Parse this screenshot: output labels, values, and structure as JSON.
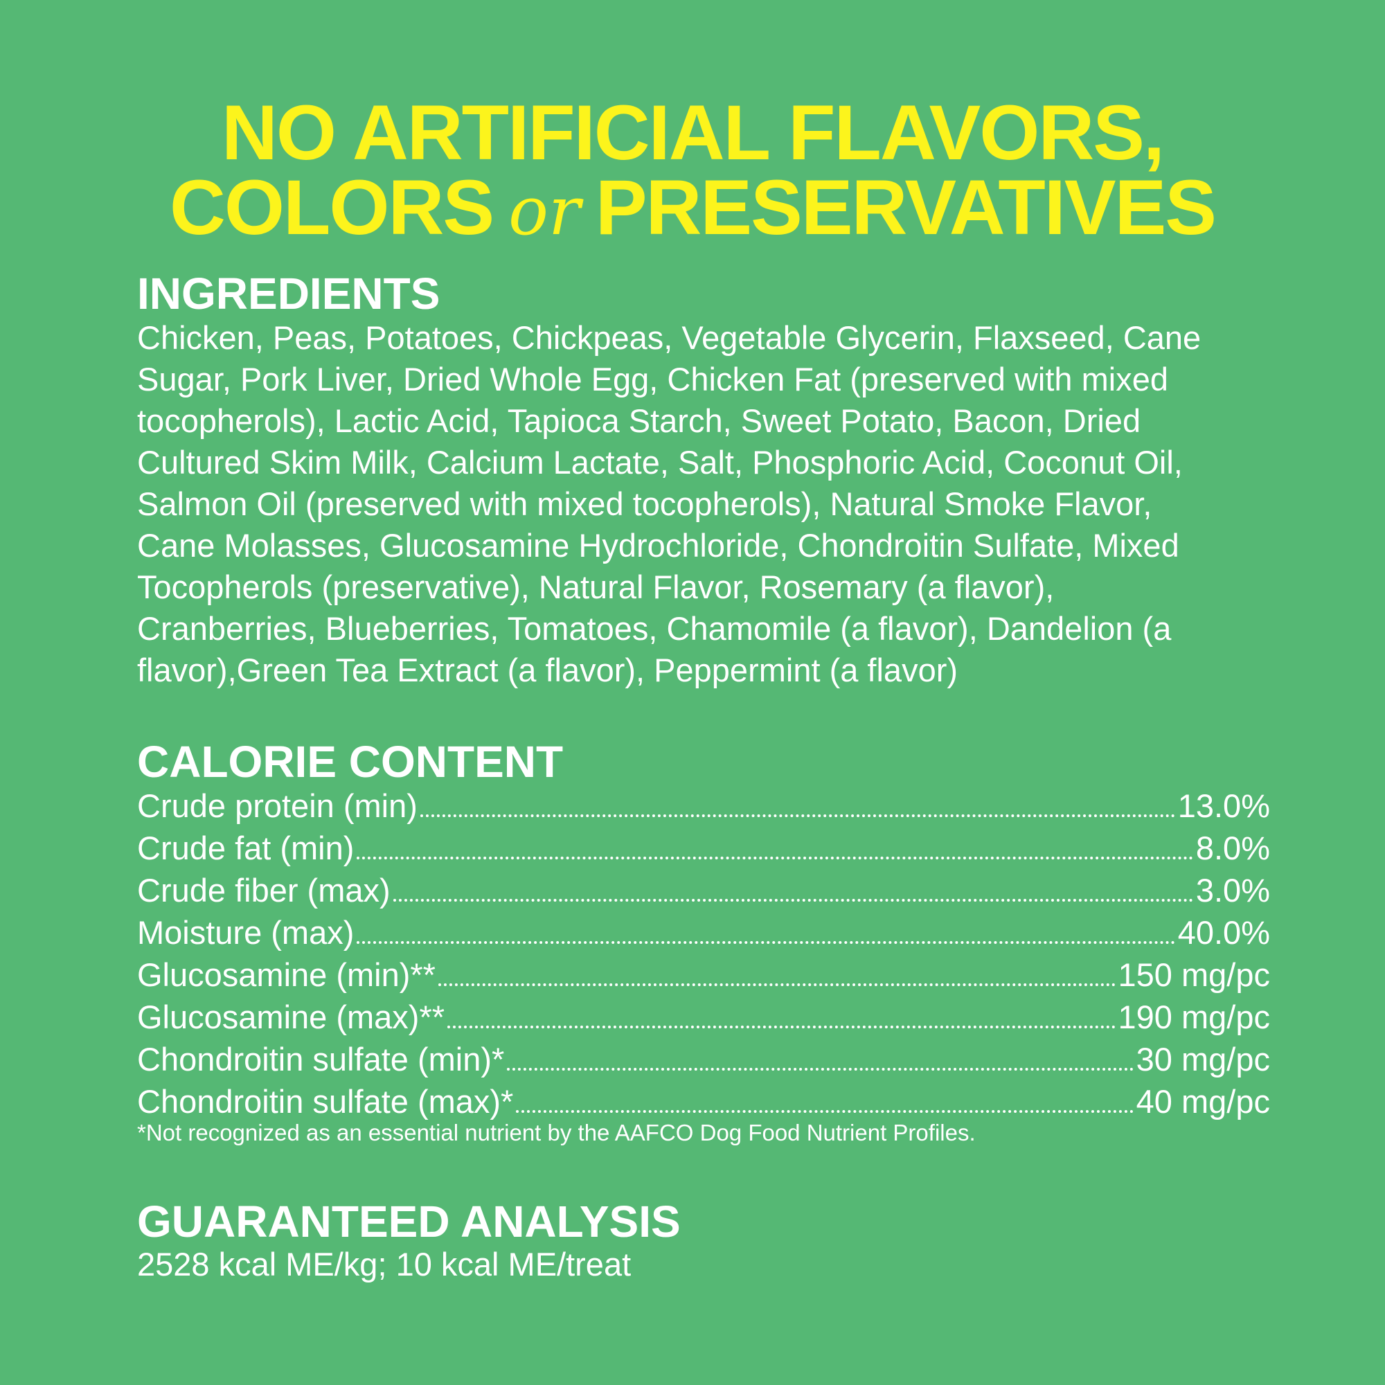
{
  "headline": {
    "line1": "NO ARTIFICIAL FLAVORS,",
    "line2": {
      "before": "COLORS",
      "connector": "or",
      "after": "PRESERVATIVES"
    }
  },
  "ingredients": {
    "heading": "INGREDIENTS",
    "lines": [
      "Chicken, Peas, Potatoes, Chickpeas, Vegetable Glycerin, Flaxseed, Cane",
      "Sugar, Pork Liver, Dried Whole Egg, Chicken Fat (preserved with mixed",
      "tocopherols), Lactic Acid, Tapioca Starch, Sweet Potato, Bacon, Dried",
      "Cultured Skim Milk, Calcium Lactate, Salt, Phosphoric Acid, Coconut Oil,",
      "Salmon Oil (preserved with mixed tocopherols), Natural Smoke Flavor,",
      "Cane Molasses, Glucosamine Hydrochloride, Chondroitin Sulfate, Mixed",
      "Tocopherols (preservative), Natural Flavor, Rosemary (a flavor),",
      "Cranberries, Blueberries, Tomatoes, Chamomile (a flavor), Dandelion (a",
      "flavor),Green Tea Extract (a flavor), Peppermint (a flavor)"
    ]
  },
  "calorie_content": {
    "heading": "CALORIE CONTENT",
    "rows": [
      [
        "Crude protein (min)",
        "13.0%"
      ],
      [
        "Crude fat (min)",
        "8.0%"
      ],
      [
        "Crude fiber (max)",
        "3.0%"
      ],
      [
        "Moisture (max)",
        "40.0%"
      ],
      [
        "Glucosamine (min)**",
        "150 mg/pc"
      ],
      [
        "Glucosamine (max)**",
        "190 mg/pc"
      ],
      [
        "Chondroitin sulfate (min)*",
        "30 mg/pc"
      ],
      [
        "Chondroitin sulfate (max)*",
        "40 mg/pc"
      ]
    ],
    "footnote": "*Not recognized as an essential nutrient by the AAFCO Dog Food Nutrient Profiles."
  },
  "guaranteed_analysis": {
    "heading": "GUARANTEED ANALYSIS",
    "text": "2528 kcal ME/kg; 10 kcal ME/treat"
  }
}
